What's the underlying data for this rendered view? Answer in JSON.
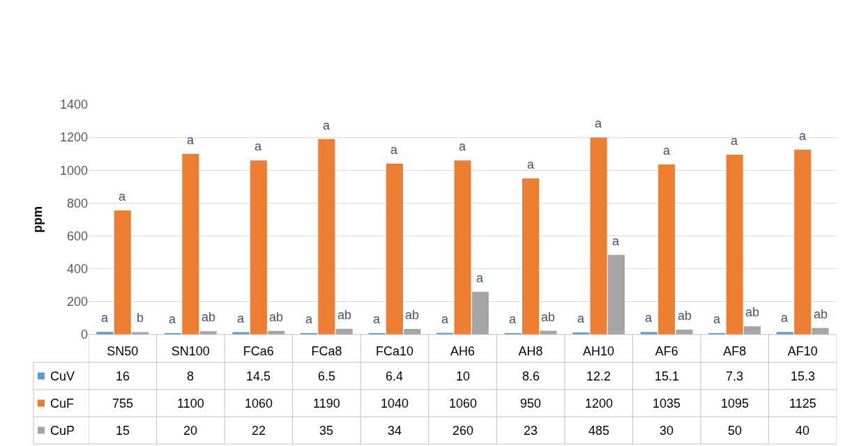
{
  "chart_data": {
    "type": "bar",
    "ylabel": "ppm",
    "categories": [
      "SN50",
      "SN100",
      "FCa6",
      "FCa8",
      "FCa10",
      "AH6",
      "AH8",
      "AH10",
      "AF6",
      "AF8",
      "AF10"
    ],
    "series": [
      {
        "name": "CuV",
        "color": "#5b9bd5",
        "values": [
          16,
          8,
          14.5,
          6.5,
          6.4,
          10,
          8.6,
          12.2,
          15.1,
          7.3,
          15.3
        ]
      },
      {
        "name": "CuF",
        "color": "#ed7d31",
        "values": [
          755,
          1100,
          1060,
          1190,
          1040,
          1060,
          950,
          1200,
          1035,
          1095,
          1125
        ]
      },
      {
        "name": "CuP",
        "color": "#a5a5a5",
        "values": [
          15,
          20,
          22,
          35,
          34,
          260,
          23,
          485,
          30,
          50,
          40
        ]
      }
    ],
    "ylim": [
      0,
      1400
    ],
    "yticks": [
      0,
      200,
      400,
      600,
      800,
      1000,
      1200,
      1400
    ],
    "grid": "y",
    "data_labels": true,
    "legend": "bottom left",
    "annotations": [
      "a",
      "a",
      "b",
      "a",
      "a",
      "ab",
      "a",
      "a",
      "ab",
      "a",
      "a",
      "ab",
      "a",
      "a",
      "ab",
      "a",
      "a",
      "a",
      "a",
      "a",
      "ab",
      "a",
      "a",
      "a",
      "a",
      "a",
      "ab",
      "a",
      "a",
      "ab",
      "a",
      "a",
      "ab"
    ]
  }
}
